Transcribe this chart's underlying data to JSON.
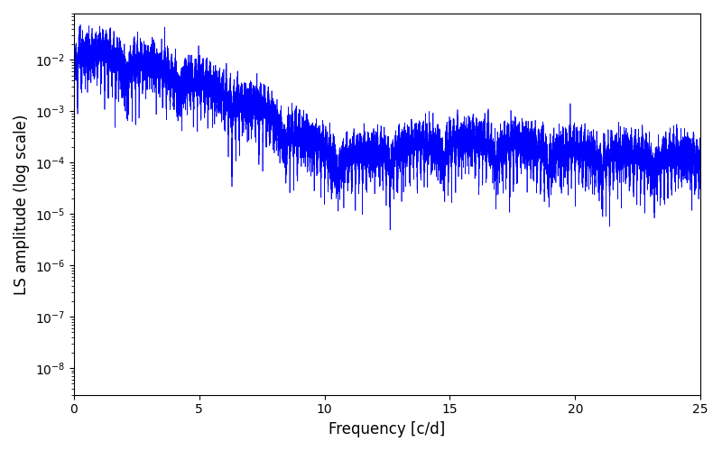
{
  "xlabel": "Frequency [c/d]",
  "ylabel": "LS amplitude (log scale)",
  "xlim": [
    0,
    25
  ],
  "ylim": [
    3e-09,
    0.08
  ],
  "line_color": "blue",
  "line_width": 0.5,
  "background_color": "#ffffff",
  "figsize": [
    8.0,
    5.0
  ],
  "dpi": 100,
  "freq_max": 25.0,
  "n_points": 20000,
  "seed": 42
}
